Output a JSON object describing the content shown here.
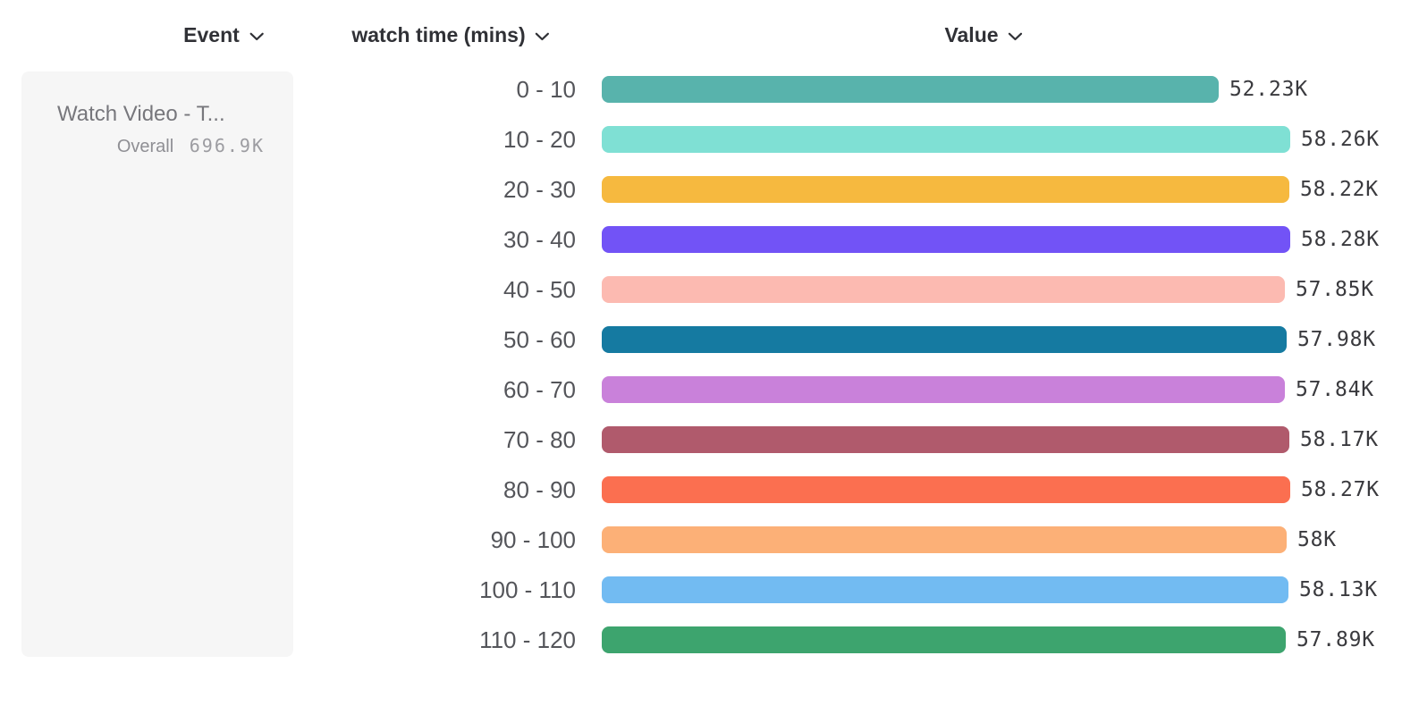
{
  "header": {
    "columns": [
      {
        "id": "event",
        "label": "Event"
      },
      {
        "id": "breakdown",
        "label": "watch time (mins)"
      },
      {
        "id": "value",
        "label": "Value"
      }
    ]
  },
  "event_card": {
    "title": "Watch Video - T...",
    "overall_label": "Overall",
    "overall_value": "696.9K"
  },
  "chart_data": {
    "type": "bar",
    "orientation": "horizontal",
    "title": "",
    "xlabel": "Value",
    "ylabel": "watch time (mins)",
    "categories": [
      "0 - 10",
      "10 - 20",
      "20 - 30",
      "30 - 40",
      "40 - 50",
      "50 - 60",
      "60 - 70",
      "70 - 80",
      "80 - 90",
      "90 - 100",
      "100 - 110",
      "110 - 120"
    ],
    "values": [
      52230,
      58260,
      58220,
      58280,
      57850,
      57980,
      57840,
      58170,
      58270,
      58000,
      58130,
      57890
    ],
    "value_labels": [
      "52.23K",
      "58.26K",
      "58.22K",
      "58.28K",
      "57.85K",
      "57.98K",
      "57.84K",
      "58.17K",
      "58.27K",
      "58K",
      "58.13K",
      "57.89K"
    ],
    "bar_colors": [
      "#58b3ac",
      "#7fe0d4",
      "#f6b93f",
      "#7253f6",
      "#fcbab1",
      "#157aa1",
      "#c981da",
      "#b05a6c",
      "#fb6f50",
      "#fcb077",
      "#72bbf2",
      "#3da46e"
    ],
    "axis_min": 0,
    "axis_max": 58280,
    "grid": false,
    "legend": false
  },
  "style": {
    "card_bg": "#f6f6f6",
    "header_color": "#303136",
    "category_label_color": "#54555a",
    "value_label_color": "#3a3a3e"
  }
}
